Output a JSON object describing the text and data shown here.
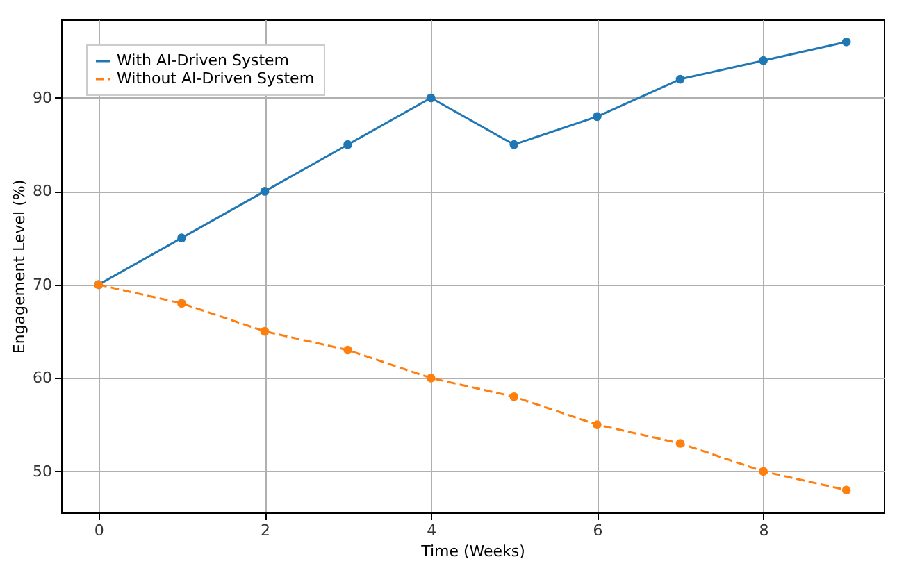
{
  "chart_data": {
    "type": "line",
    "xlabel": "Time (Weeks)",
    "ylabel": "Engagement Level (%)",
    "x": [
      0,
      1,
      2,
      3,
      4,
      5,
      6,
      7,
      8,
      9
    ],
    "series": [
      {
        "name": "With AI-Driven System",
        "color": "#1f77b4",
        "line_style": "solid",
        "values": [
          70,
          75,
          80,
          85,
          90,
          85,
          88,
          92,
          94,
          96
        ]
      },
      {
        "name": "Without AI-Driven System",
        "color": "#ff7f0e",
        "line_style": "dashed",
        "values": [
          70,
          68,
          65,
          63,
          60,
          58,
          55,
          53,
          50,
          48
        ]
      }
    ],
    "xlim": [
      -0.45,
      9.45
    ],
    "xticks": [
      0,
      2,
      4,
      6,
      8
    ],
    "ylim": [
      45.6,
      98.4
    ],
    "yticks": [
      50,
      60,
      70,
      80,
      90
    ],
    "grid": true,
    "legend": "top left",
    "marker": "circle"
  }
}
